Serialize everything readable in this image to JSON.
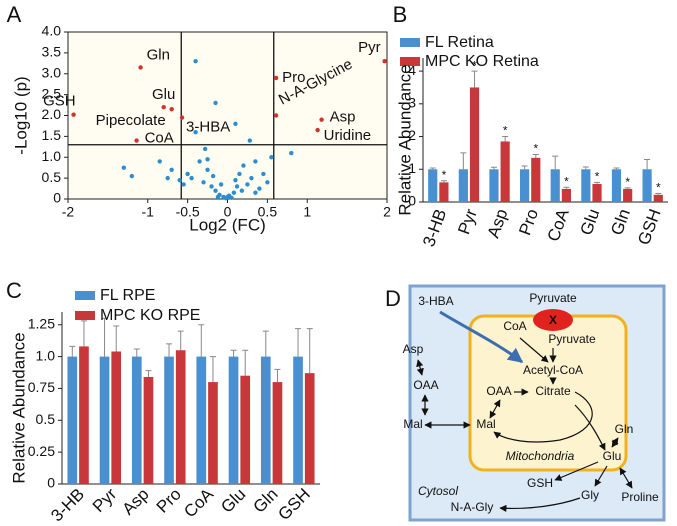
{
  "chart_data": [
    {
      "type": "scatter",
      "panel": "A",
      "xlabel": "Log2 (FC)",
      "ylabel": "-Log10 (p)",
      "xlim": [
        -2,
        2
      ],
      "ylim": [
        0,
        4
      ],
      "xticks": [
        -2,
        -1,
        -0.5,
        0,
        0.5,
        1,
        2
      ],
      "yticks": [
        0,
        0.5,
        {
          "value": 1,
          "label": "1.0"
        },
        1.5,
        {
          "value": 2,
          "label": "2.0"
        },
        2.5,
        {
          "value": 3,
          "label": "3.0"
        },
        3.5,
        {
          "value": 4,
          "label": "4.0"
        }
      ],
      "hlines": [
        1.3
      ],
      "vlines": [
        -0.58,
        0.58
      ],
      "series": [
        {
          "color": "#d2332c",
          "labels": [
            "Gln",
            "GSH",
            "Glu",
            "Pipecolate",
            "3-HBA",
            "CoA",
            "Pyr",
            "Pro",
            "N-A-Glycine",
            "Asp",
            "Uridine"
          ],
          "x": [
            -1.09,
            -1.93,
            -0.8,
            -0.7,
            -0.57,
            -1.14,
            1.97,
            0.61,
            0.61,
            1.18,
            1.13
          ],
          "values": [
            3.15,
            2.02,
            2.2,
            2.15,
            1.95,
            1.4,
            3.3,
            2.9,
            2.0,
            1.9,
            1.65
          ]
        },
        {
          "color": "#2a8ed0",
          "x": [
            -1.3,
            -1.2,
            -0.85,
            -0.75,
            -0.7,
            -0.6,
            -0.55,
            -0.5,
            -0.45,
            -0.4,
            -0.35,
            -0.3,
            -0.28,
            -0.25,
            -0.2,
            -0.18,
            -0.15,
            -0.12,
            -0.1,
            -0.08,
            -0.05,
            -0.02,
            0,
            0.02,
            0.05,
            0.08,
            0.1,
            0.12,
            0.15,
            0.18,
            0.2,
            0.25,
            0.3,
            0.35,
            0.4,
            0.45,
            0.5,
            0.55,
            0.8,
            -0.4,
            -0.15,
            0.28,
            0.1,
            -0.25,
            0.35
          ],
          "values": [
            0.75,
            0.55,
            0.9,
            0.5,
            0.7,
            0.45,
            0.35,
            0.6,
            0.5,
            1.6,
            0.9,
            0.4,
            1.2,
            0.7,
            0.3,
            0.55,
            0.2,
            0.05,
            0.1,
            0.35,
            0.05,
            0.02,
            0.05,
            0.08,
            0.03,
            0.15,
            0.45,
            0.3,
            0.6,
            0.2,
            0.8,
            0.35,
            0.5,
            0.9,
            0.25,
            0.6,
            0.4,
            1.0,
            1.1,
            3.3,
            2.3,
            1.4,
            1.8,
            0.95,
            0.15
          ]
        }
      ]
    },
    {
      "type": "bar",
      "panel": "B",
      "ylabel": "Relative  Abundance",
      "categories": [
        "3-HB",
        "Pyr",
        "Asp",
        "Pro",
        "CoA",
        "Glu",
        "Gln",
        "GSH"
      ],
      "ylim": [
        0,
        4.4
      ],
      "yticks": [
        0,
        1,
        2,
        3,
        4
      ],
      "series": [
        {
          "name": "FL Retina",
          "color": "#4a90d0",
          "values": [
            1,
            1,
            1,
            1,
            1,
            1,
            1,
            1
          ],
          "errors": [
            0.04,
            0.5,
            0.06,
            0.1,
            0.4,
            0.07,
            0.04,
            0.3
          ]
        },
        {
          "name": "MPC KO Retina",
          "color": "#c8383a",
          "values": [
            0.6,
            3.5,
            1.85,
            1.35,
            0.4,
            0.55,
            0.4,
            0.22
          ],
          "errors": [
            0.05,
            0.5,
            0.15,
            0.1,
            0.05,
            0.05,
            0.03,
            0.04
          ],
          "markers": [
            "*",
            "*",
            "*",
            "*",
            "*",
            "*",
            "*",
            "*"
          ]
        }
      ]
    },
    {
      "type": "bar",
      "panel": "C",
      "ylabel": "Relative  Abundance",
      "categories": [
        "3-HB",
        "Pyr",
        "Asp",
        "Pro",
        "CoA",
        "Glu",
        "Gln",
        "GSH"
      ],
      "ylim": [
        0,
        1.35
      ],
      "yticks": [
        0,
        0.25,
        0.5,
        0.75,
        {
          "value": 1,
          "label": "1.0"
        },
        1.25
      ],
      "series": [
        {
          "name": "FL RPE",
          "color": "#4a90d0",
          "values": [
            1,
            1,
            1,
            1,
            1,
            1,
            1,
            1
          ],
          "errors": [
            0.08,
            0.3,
            0.06,
            0.1,
            0.25,
            0.05,
            0.2,
            0.22
          ]
        },
        {
          "name": "MPC KO RPE",
          "color": "#c8383a",
          "values": [
            1.08,
            1.04,
            0.84,
            1.05,
            0.8,
            0.85,
            0.8,
            0.87
          ],
          "errors": [
            0.2,
            0.2,
            0.05,
            0.15,
            0.2,
            0.2,
            0.1,
            0.35
          ]
        }
      ]
    }
  ],
  "diagram": {
    "panel": "D",
    "nodes": [
      {
        "label": "3-HBA",
        "color": "#1aa64a"
      },
      {
        "label": "Pyruvate",
        "color": "#d2332c"
      },
      {
        "label": "X",
        "color": "#ffffff"
      },
      {
        "label": "CoA",
        "color": "#1aa64a"
      },
      {
        "label": "Pyruvate",
        "color": "#1aa64a"
      },
      {
        "label": "Asp",
        "color": "#d2332c"
      },
      {
        "label": "OAA",
        "color": "#111111"
      },
      {
        "label": "Acetyl-CoA",
        "color": "#111111"
      },
      {
        "label": "OAA",
        "color": "#111111"
      },
      {
        "label": "Citrate",
        "color": "#111111"
      },
      {
        "label": "Mal",
        "color": "#111111"
      },
      {
        "label": "Mal",
        "color": "#111111"
      },
      {
        "label": "Mitochondria",
        "color": "#111111"
      },
      {
        "label": "Gln",
        "color": "#1aa64a"
      },
      {
        "label": "Glu",
        "color": "#1aa64a"
      },
      {
        "label": "GSH",
        "color": "#1aa64a"
      },
      {
        "label": "Gly",
        "color": "#111111"
      },
      {
        "label": "Proline",
        "color": "#d2332c"
      },
      {
        "label": "N-A-Gly",
        "color": "#d2332c"
      },
      {
        "label": "Cytosol",
        "color": "#111111"
      }
    ]
  }
}
